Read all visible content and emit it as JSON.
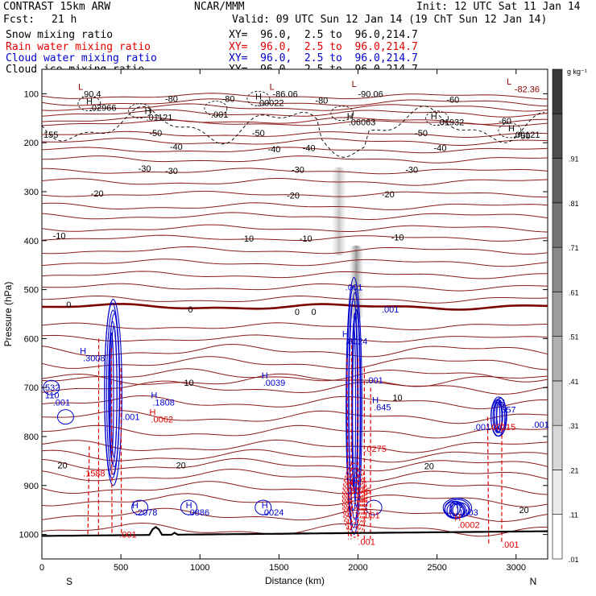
{
  "header": {
    "model": "CONTRAST 15km ARW",
    "org": "NCAR/MMM",
    "init": "Init: 12 UTC Sat 11 Jan 14",
    "fcst_label": "Fcst:",
    "fcst_value": "21 h",
    "valid": "Valid: 09 UTC Sun 12 Jan 14 (19 ChT Sun 12 Jan 14)",
    "fields": [
      {
        "name": "Snow mixing ratio",
        "xy": "XY=  96.0,  2.5 to  96.0,214.7",
        "color": "#000000"
      },
      {
        "name": "Rain water mixing ratio",
        "xy": "XY=  96.0,  2.5 to  96.0,214.7",
        "color": "#e00000"
      },
      {
        "name": "Cloud water mixing ratio",
        "xy": "XY=  96.0,  2.5 to  96.0,214.7",
        "color": "#0000cc"
      },
      {
        "name": "Cloud ice mixing ratio",
        "xy": "XY=  96.0,  2.5 to  96.0,214.7",
        "color": "#000000"
      }
    ]
  },
  "chart_data": {
    "type": "contour",
    "xlabel": "Distance (km)",
    "ylabel": "Pressure (hPa)",
    "xlim": [
      0,
      3200
    ],
    "ylim": [
      1050,
      50
    ],
    "x_ticks": [
      0,
      500,
      1000,
      1500,
      2000,
      2500,
      3000
    ],
    "y_ticks": [
      100,
      200,
      300,
      400,
      500,
      600,
      700,
      800,
      900,
      1000
    ],
    "x_end_labels": {
      "left": "S",
      "right": "N"
    },
    "colorbar": {
      "unit": "g kg⁻¹",
      "levels": [
        ".01",
        ".11",
        ".21",
        ".31",
        ".41",
        ".51",
        ".61",
        ".71",
        ".81",
        ".91"
      ],
      "colors": {
        "low": "#ffffff",
        "high": "#3a3a3a"
      }
    },
    "temperature_isotherms": [
      {
        "label": "-80",
        "p": 105
      },
      {
        "label": "-60",
        "p": 160
      },
      {
        "label": "-50",
        "p": 183
      },
      {
        "label": "-40",
        "p": 215
      },
      {
        "label": "-30",
        "p": 258
      },
      {
        "label": "-20",
        "p": 305
      },
      {
        "label": "-10",
        "p": 395
      },
      {
        "label": "0",
        "p": 535
      },
      {
        "label": "10",
        "p": 685
      },
      {
        "label": "20",
        "p": 858
      }
    ],
    "plain_isotherm_pressures": [
      118,
      128,
      140,
      155,
      198,
      234,
      280,
      330,
      350,
      375,
      420,
      445,
      470,
      495,
      520,
      575,
      600,
      625,
      650,
      675,
      700,
      730,
      760,
      790,
      820,
      840,
      880,
      905,
      930,
      960,
      990
    ],
    "temperature_labels": [
      {
        "text": "-80",
        "x": 820,
        "p": 110
      },
      {
        "text": "-80",
        "x": 1180,
        "p": 110
      },
      {
        "text": "-80",
        "x": 1770,
        "p": 113
      },
      {
        "text": "-60",
        "x": 2600,
        "p": 112
      },
      {
        "text": "-60",
        "x": 2930,
        "p": 155
      },
      {
        "text": "-50",
        "x": 720,
        "p": 180
      },
      {
        "text": "-50",
        "x": 1370,
        "p": 180
      },
      {
        "text": "-50",
        "x": 2400,
        "p": 180
      },
      {
        "text": "-50",
        "x": 3050,
        "p": 186
      },
      {
        "text": "-40",
        "x": 850,
        "p": 208
      },
      {
        "text": "-40",
        "x": 1470,
        "p": 213
      },
      {
        "text": "-40",
        "x": 1690,
        "p": 210
      },
      {
        "text": "-40",
        "x": 2520,
        "p": 210
      },
      {
        "text": "-30",
        "x": 650,
        "p": 252
      },
      {
        "text": "-30",
        "x": 820,
        "p": 257
      },
      {
        "text": "-30",
        "x": 1620,
        "p": 255
      },
      {
        "text": "-30",
        "x": 2340,
        "p": 255
      },
      {
        "text": "-20",
        "x": 350,
        "p": 303
      },
      {
        "text": "-20",
        "x": 1590,
        "p": 307
      },
      {
        "text": "-20",
        "x": 2190,
        "p": 305
      },
      {
        "text": "-10",
        "x": 110,
        "p": 390
      },
      {
        "text": "-10",
        "x": 1300,
        "p": 395
      },
      {
        "text": "-10",
        "x": 1670,
        "p": 395
      },
      {
        "text": "-10",
        "x": 2250,
        "p": 393
      },
      {
        "text": "0",
        "x": 170,
        "p": 530
      },
      {
        "text": "0",
        "x": 940,
        "p": 540
      },
      {
        "text": "0",
        "x": 1615,
        "p": 545
      },
      {
        "text": "0",
        "x": 1720,
        "p": 545
      },
      {
        "text": "10",
        "x": 930,
        "p": 690
      },
      {
        "text": "10",
        "x": 2250,
        "p": 720
      },
      {
        "text": "20",
        "x": 130,
        "p": 858
      },
      {
        "text": "20",
        "x": 880,
        "p": 858
      },
      {
        "text": "20",
        "x": 2450,
        "p": 860
      },
      {
        "text": "20",
        "x": 3050,
        "p": 950
      }
    ],
    "extrema_labels": [
      {
        "text": "L",
        "x": 230,
        "p": 85,
        "color": "#8b0000"
      },
      {
        "text": ".90.4",
        "x": 250,
        "p": 100,
        "color": "#000000"
      },
      {
        "text": "H",
        "x": 280,
        "p": 115,
        "color": "#000000"
      },
      {
        "text": ".02966",
        "x": 300,
        "p": 128,
        "color": "#000000"
      },
      {
        "text": "H",
        "x": 650,
        "p": 135,
        "color": "#000000"
      },
      {
        "text": ".01121",
        "x": 660,
        "p": 148,
        "color": "#000000"
      },
      {
        "text": ".001",
        "x": 1070,
        "p": 142,
        "color": "#000000"
      },
      {
        "text": "H",
        "x": 1350,
        "p": 105,
        "color": "#000000"
      },
      {
        "text": ".00022",
        "x": 1360,
        "p": 118,
        "color": "#000000"
      },
      {
        "text": "L",
        "x": 1440,
        "p": 85,
        "color": "#8b0000"
      },
      {
        "text": "-86.06",
        "x": 1460,
        "p": 100,
        "color": "#000000"
      },
      {
        "text": "L",
        "x": 1960,
        "p": 80,
        "color": "#8b0000"
      },
      {
        "text": "-90.06",
        "x": 2000,
        "p": 100,
        "color": "#000000"
      },
      {
        "text": "H",
        "x": 1930,
        "p": 145,
        "color": "#000000"
      },
      {
        "text": ".06063",
        "x": 1940,
        "p": 158,
        "color": "#000000"
      },
      {
        "text": "H",
        "x": 2460,
        "p": 145,
        "color": "#000000"
      },
      {
        "text": ".01932",
        "x": 2500,
        "p": 158,
        "color": "#000000"
      },
      {
        "text": "H",
        "x": 2950,
        "p": 170,
        "color": "#000000"
      },
      {
        "text": ".00121",
        "x": 2980,
        "p": 183,
        "color": "#000000"
      },
      {
        "text": "L",
        "x": 2940,
        "p": 75,
        "color": "#8b0000"
      },
      {
        "text": "-82.36",
        "x": 2990,
        "p": 90,
        "color": "#8b0000"
      },
      {
        "text": "155",
        "x": 10,
        "p": 183,
        "color": "#000000"
      },
      {
        "text": ".001",
        "x": 1920,
        "p": 495,
        "color": "#0000cc"
      },
      {
        "text": ".001",
        "x": 2150,
        "p": 540,
        "color": "#0000cc"
      },
      {
        "text": "H",
        "x": 1900,
        "p": 590,
        "color": "#0000cc"
      },
      {
        "text": ".8024",
        "x": 1920,
        "p": 605,
        "color": "#0000cc"
      },
      {
        "text": "H",
        "x": 240,
        "p": 625,
        "color": "#0000cc"
      },
      {
        "text": ".3008",
        "x": 260,
        "p": 640,
        "color": "#0000cc"
      },
      {
        "text": ".532",
        "x": 5,
        "p": 700,
        "color": "#0000cc"
      },
      {
        "text": "110",
        "x": 20,
        "p": 715,
        "color": "#0000cc"
      },
      {
        "text": ".001",
        "x": 70,
        "p": 730,
        "color": "#0000cc"
      },
      {
        "text": "H",
        "x": 1390,
        "p": 675,
        "color": "#0000cc"
      },
      {
        "text": ".0039",
        "x": 1400,
        "p": 690,
        "color": "#0000cc"
      },
      {
        "text": "H",
        "x": 690,
        "p": 715,
        "color": "#0000cc"
      },
      {
        "text": ".1808",
        "x": 700,
        "p": 730,
        "color": "#0000cc"
      },
      {
        "text": "H",
        "x": 680,
        "p": 750,
        "color": "#e00000"
      },
      {
        "text": ".0062",
        "x": 690,
        "p": 765,
        "color": "#e00000"
      },
      {
        "text": ".001",
        "x": 510,
        "p": 760,
        "color": "#0000cc"
      },
      {
        "text": ".001",
        "x": 2050,
        "p": 685,
        "color": "#0000cc"
      },
      {
        "text": "H",
        "x": 2090,
        "p": 725,
        "color": "#0000cc"
      },
      {
        "text": ".645",
        "x": 2100,
        "p": 740,
        "color": "#0000cc"
      },
      {
        "text": ".0275",
        "x": 2040,
        "p": 825,
        "color": "#e00000"
      },
      {
        "text": "H",
        "x": 2890,
        "p": 730,
        "color": "#0000cc"
      },
      {
        "text": ".657",
        "x": 2890,
        "p": 745,
        "color": "#0000cc"
      },
      {
        "text": ".001",
        "x": 2730,
        "p": 780,
        "color": "#0000cc"
      },
      {
        "text": ".00115",
        "x": 2830,
        "p": 780,
        "color": "#e00000"
      },
      {
        "text": ".001",
        "x": 3100,
        "p": 775,
        "color": "#0000cc"
      },
      {
        "text": ".1588",
        "x": 260,
        "p": 875,
        "color": "#e00000"
      },
      {
        "text": "H",
        "x": 570,
        "p": 940,
        "color": "#0000cc"
      },
      {
        "text": ".2078",
        "x": 590,
        "p": 955,
        "color": "#0000cc"
      },
      {
        "text": "H",
        "x": 910,
        "p": 940,
        "color": "#0000cc"
      },
      {
        "text": ".0886",
        "x": 920,
        "p": 955,
        "color": "#0000cc"
      },
      {
        "text": "H",
        "x": 1390,
        "p": 940,
        "color": "#0000cc"
      },
      {
        "text": ".0024",
        "x": 1390,
        "p": 955,
        "color": "#0000cc"
      },
      {
        "text": "H",
        "x": 2620,
        "p": 940,
        "color": "#0000cc"
      },
      {
        "text": ".1403",
        "x": 2620,
        "p": 955,
        "color": "#0000cc"
      },
      {
        "text": "H",
        "x": 2610,
        "p": 965,
        "color": "#e00000"
      },
      {
        "text": ".0002",
        "x": 2630,
        "p": 980,
        "color": "#e00000"
      },
      {
        "text": ".001",
        "x": 490,
        "p": 1000,
        "color": "#e00000"
      },
      {
        "text": ".001",
        "x": 2030,
        "p": 960,
        "color": "#e00000"
      },
      {
        "text": ".001",
        "x": 2000,
        "p": 1015,
        "color": "#e00000"
      },
      {
        "text": "H",
        "x": 1930,
        "p": 895,
        "color": "#e00000"
      },
      {
        "text": ".8346",
        "x": 1940,
        "p": 910,
        "color": "#e00000"
      },
      {
        "text": ".001",
        "x": 2910,
        "p": 1020,
        "color": "#e00000"
      }
    ],
    "cells": [
      {
        "center_x": 450,
        "color": "#0000cc",
        "p_top": 520,
        "p_bot": 900,
        "half_width_km": 55
      },
      {
        "center_x": 1980,
        "color": "#0000cc",
        "p_top": 475,
        "p_bot": 1000,
        "half_width_km": 50
      },
      {
        "center_x": 2890,
        "color": "#0000cc",
        "p_top": 720,
        "p_bot": 800,
        "half_width_km": 50
      },
      {
        "center_x": 2620,
        "color": "#0000cc",
        "p_top": 930,
        "p_bot": 970,
        "half_width_km": 90
      }
    ],
    "shading": [
      {
        "x": 1880,
        "p_top": 250,
        "p_bot": 430,
        "intensity": 0.35
      },
      {
        "x": 1990,
        "p_top": 410,
        "p_bot": 560,
        "intensity": 0.6
      }
    ]
  }
}
